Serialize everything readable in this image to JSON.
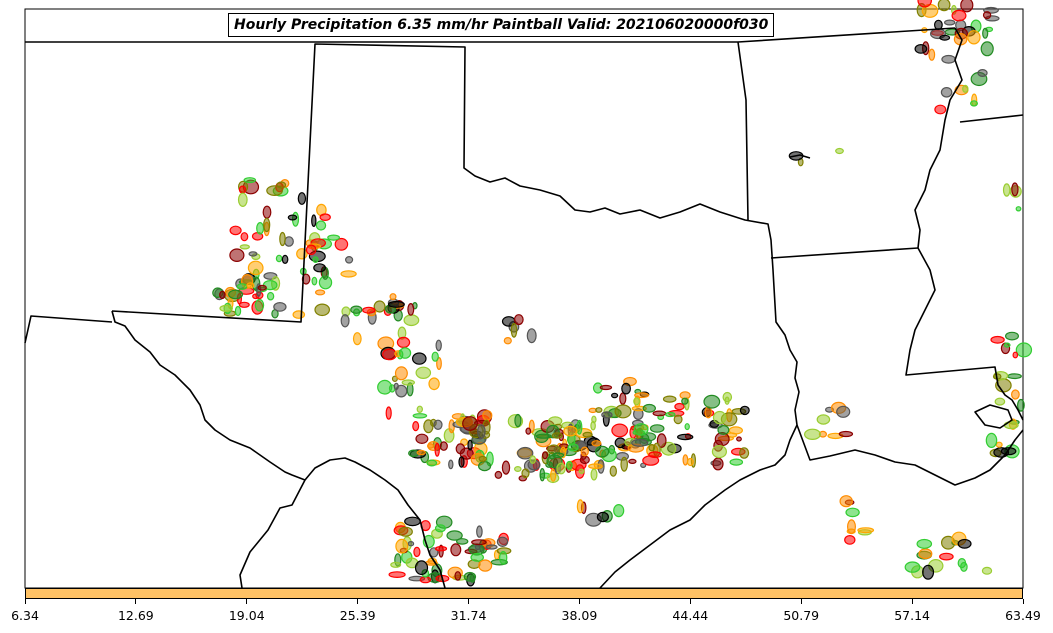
{
  "title": "Hourly Precipitation 6.35 mm/hr Paintball Valid: 202106020000f030",
  "colorbar": {
    "color": "#ffc265",
    "ticks": [
      "6.34",
      "12.69",
      "19.04",
      "25.39",
      "31.74",
      "38.09",
      "44.44",
      "50.79",
      "57.14",
      "63.49"
    ]
  },
  "ensemble_colors": [
    "#ff0000",
    "#8b0000",
    "#ff8c00",
    "#ffa500",
    "#32cd32",
    "#228b22",
    "#808000",
    "#9acd32",
    "#000000",
    "#555555"
  ]
}
